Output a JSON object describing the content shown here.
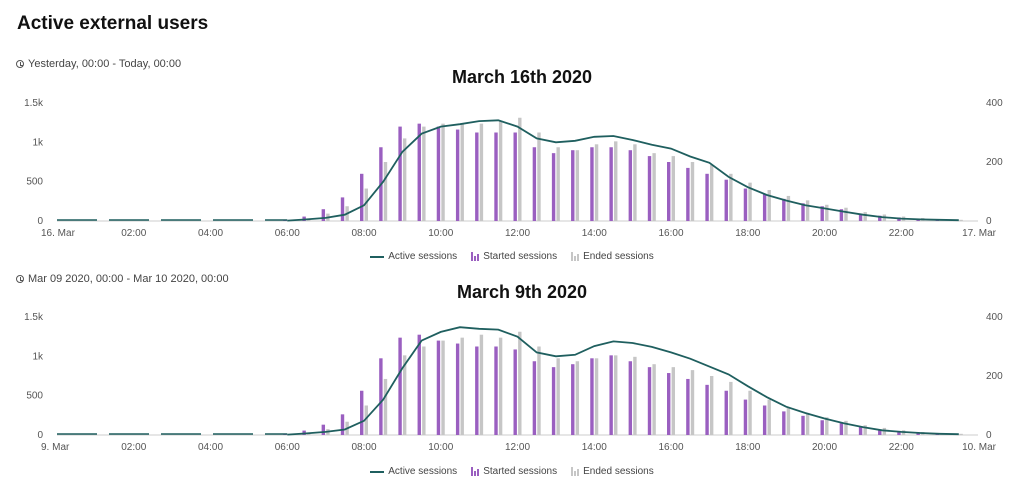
{
  "page_title": "Active external users",
  "colors": {
    "active": "#1f5f5f",
    "started": "#9a5fc0",
    "ended": "#c6c6c6",
    "axis": "#cccccc"
  },
  "legend": {
    "active": "Active sessions",
    "started": "Started sessions",
    "ended": "Ended sessions"
  },
  "chart_data": [
    {
      "type": "bar",
      "range_label": "Yesterday, 00:00 - Today, 00:00",
      "title": "March 16th 2020",
      "x_ticks": [
        "16. Mar",
        "02:00",
        "04:00",
        "06:00",
        "08:00",
        "10:00",
        "12:00",
        "14:00",
        "16:00",
        "18:00",
        "20:00",
        "22:00",
        "17. Mar"
      ],
      "y_left_ticks": [
        "0",
        "500",
        "1k",
        "1.5k"
      ],
      "y_right_ticks": [
        "0",
        "200",
        "400"
      ],
      "ylim_left": [
        0,
        1500
      ],
      "ylim_right": [
        0,
        400
      ],
      "x_hours": [
        6,
        6.5,
        7,
        7.5,
        8,
        8.5,
        9,
        9.5,
        10,
        10.5,
        11,
        11.5,
        12,
        12.5,
        13,
        13.5,
        14,
        14.5,
        15,
        15.5,
        16,
        16.5,
        17,
        17.5,
        18,
        18.5,
        19,
        19.5,
        20,
        20.5,
        21,
        21.5,
        22,
        22.5,
        23,
        23.5
      ],
      "series": [
        {
          "name": "Active sessions",
          "axis": "left",
          "values": [
            5,
            20,
            40,
            80,
            200,
            500,
            880,
            1110,
            1200,
            1230,
            1270,
            1280,
            1200,
            1050,
            1000,
            1020,
            1070,
            1080,
            1030,
            970,
            920,
            820,
            740,
            560,
            430,
            330,
            260,
            200,
            160,
            120,
            80,
            50,
            30,
            20,
            15,
            10
          ]
        },
        {
          "name": "Started sessions",
          "axis": "right",
          "values": [
            5,
            15,
            40,
            80,
            160,
            250,
            320,
            330,
            320,
            310,
            300,
            300,
            300,
            250,
            230,
            240,
            250,
            250,
            240,
            220,
            200,
            180,
            160,
            140,
            110,
            90,
            75,
            60,
            50,
            40,
            25,
            18,
            12,
            8,
            5,
            3
          ]
        },
        {
          "name": "Ended sessions",
          "axis": "right",
          "values": [
            2,
            8,
            25,
            50,
            110,
            200,
            280,
            320,
            330,
            330,
            330,
            340,
            350,
            300,
            250,
            240,
            260,
            270,
            260,
            230,
            220,
            200,
            190,
            160,
            130,
            105,
            85,
            70,
            55,
            45,
            30,
            22,
            15,
            10,
            6,
            4
          ]
        }
      ]
    },
    {
      "type": "bar",
      "range_label": "Mar 09 2020, 00:00 - Mar 10 2020, 00:00",
      "title": "March 9th 2020",
      "x_ticks": [
        "9. Mar",
        "02:00",
        "04:00",
        "06:00",
        "08:00",
        "10:00",
        "12:00",
        "14:00",
        "16:00",
        "18:00",
        "20:00",
        "22:00",
        "10. Mar"
      ],
      "y_left_ticks": [
        "0",
        "500",
        "1k",
        "1.5k"
      ],
      "y_right_ticks": [
        "0",
        "200",
        "400"
      ],
      "ylim_left": [
        0,
        1500
      ],
      "ylim_right": [
        0,
        400
      ],
      "x_hours": [
        6,
        6.5,
        7,
        7.5,
        8,
        8.5,
        9,
        9.5,
        10,
        10.5,
        11,
        11.5,
        12,
        12.5,
        13,
        13.5,
        14,
        14.5,
        15,
        15.5,
        16,
        16.5,
        17,
        17.5,
        18,
        18.5,
        19,
        19.5,
        20,
        20.5,
        21,
        21.5,
        22,
        22.5,
        23,
        23.5
      ],
      "series": [
        {
          "name": "Active sessions",
          "axis": "left",
          "values": [
            5,
            20,
            40,
            70,
            180,
            450,
            850,
            1200,
            1310,
            1370,
            1350,
            1340,
            1250,
            1050,
            1000,
            1020,
            1130,
            1190,
            1170,
            1120,
            1050,
            970,
            870,
            770,
            620,
            480,
            360,
            280,
            210,
            150,
            100,
            60,
            40,
            25,
            15,
            10
          ]
        },
        {
          "name": "Started sessions",
          "axis": "right",
          "values": [
            5,
            15,
            35,
            70,
            150,
            260,
            330,
            340,
            320,
            310,
            300,
            300,
            290,
            250,
            230,
            240,
            260,
            270,
            250,
            230,
            210,
            190,
            170,
            150,
            120,
            100,
            80,
            65,
            50,
            40,
            28,
            18,
            12,
            8,
            5,
            3
          ]
        },
        {
          "name": "Ended sessions",
          "axis": "right",
          "values": [
            2,
            8,
            20,
            45,
            100,
            190,
            270,
            300,
            320,
            330,
            340,
            330,
            350,
            300,
            260,
            250,
            260,
            270,
            265,
            240,
            230,
            220,
            200,
            180,
            150,
            120,
            95,
            75,
            60,
            48,
            33,
            24,
            16,
            10,
            6,
            4
          ]
        }
      ]
    }
  ]
}
